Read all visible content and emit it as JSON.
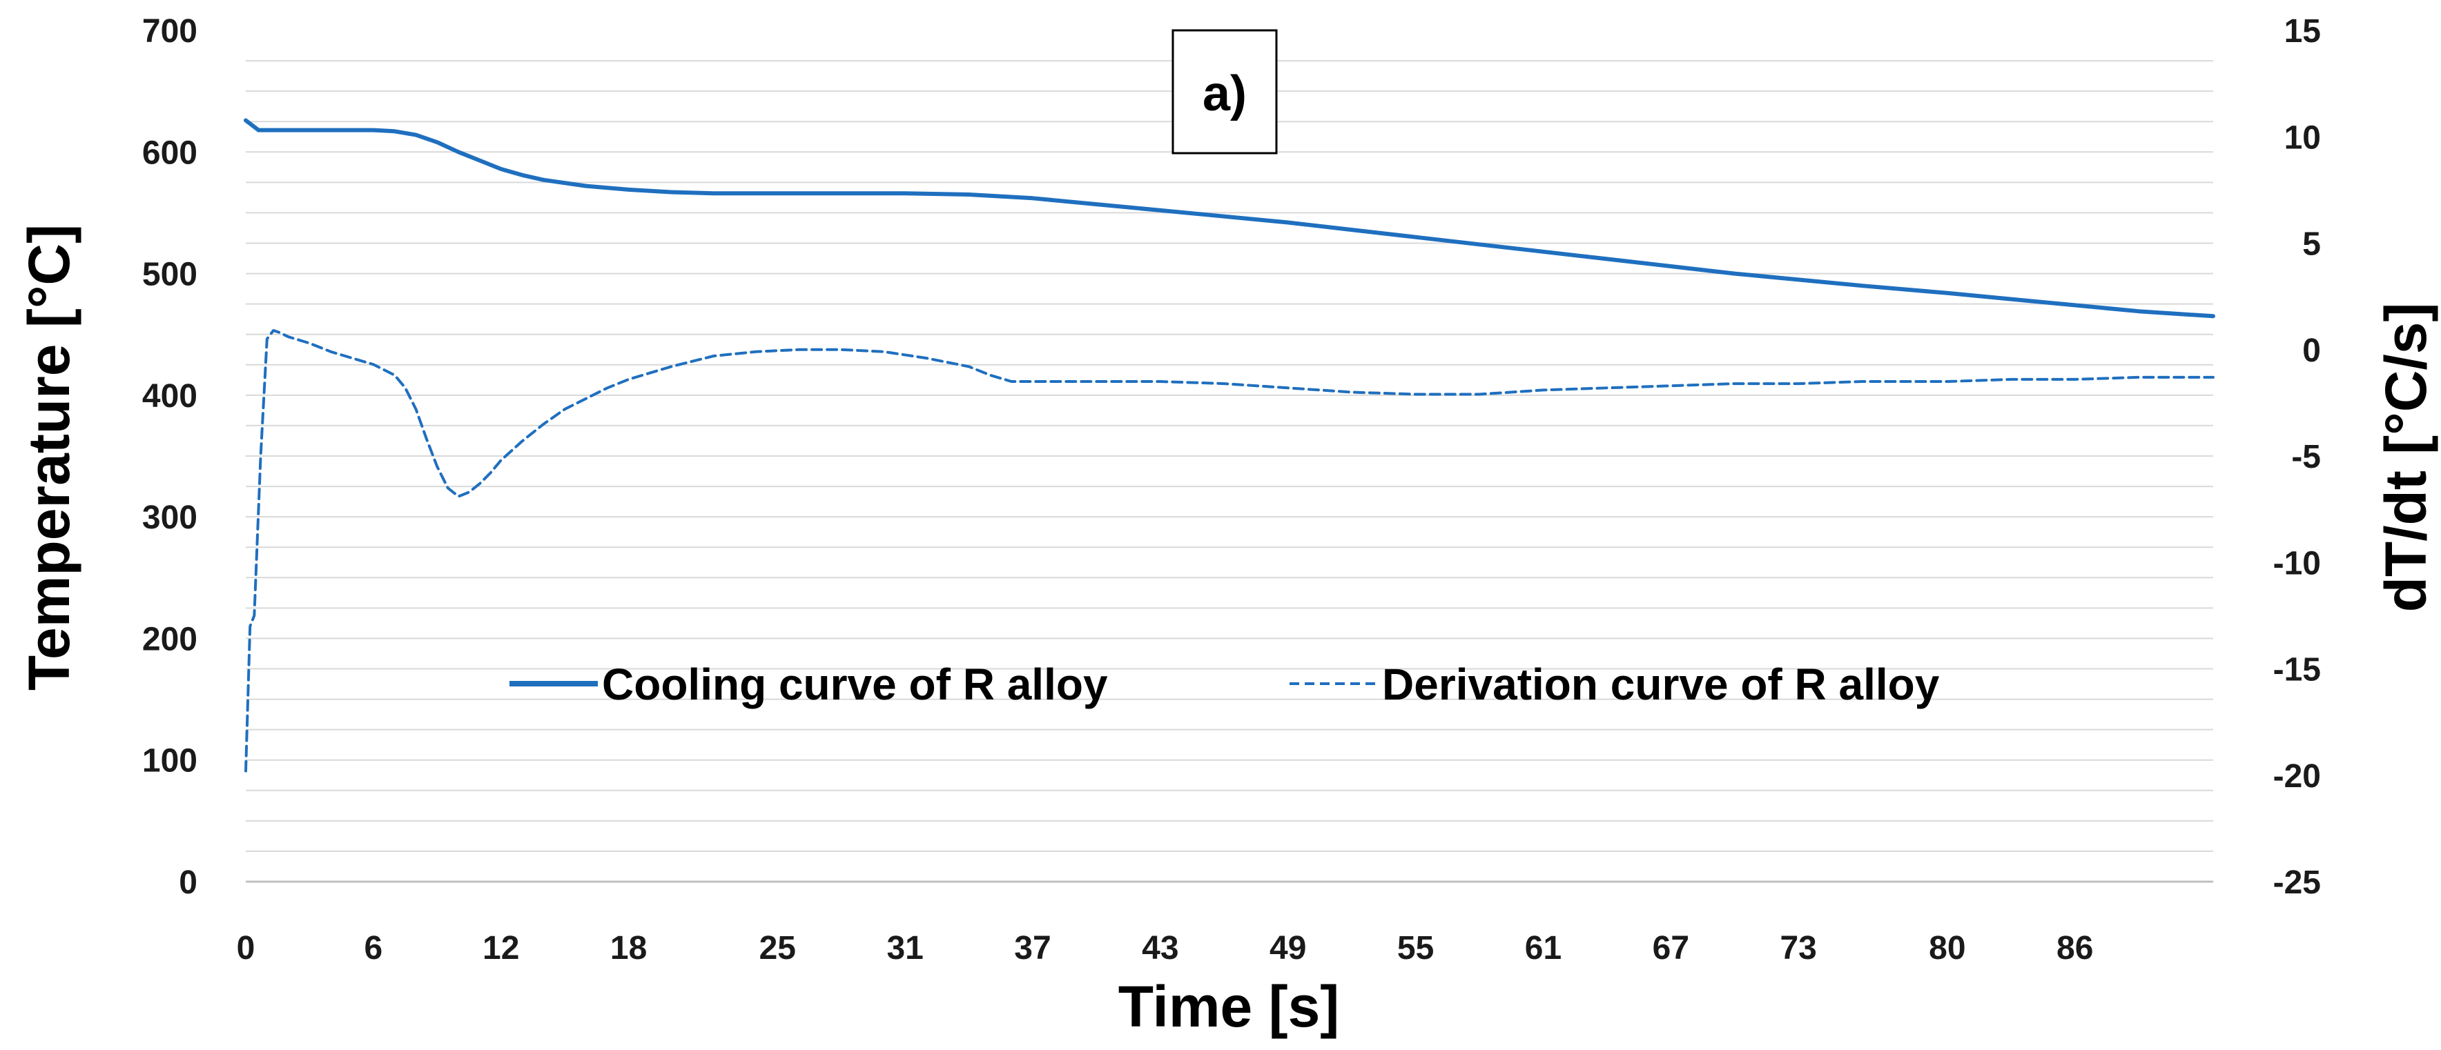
{
  "chart_data": {
    "type": "line",
    "panel_label": "a)",
    "xlabel": "Time [s]",
    "ylabel": "Temperature [°C]",
    "y2label": "dT/dt [°C/s]",
    "xlim": [
      0,
      92.5
    ],
    "ylim": [
      0,
      700
    ],
    "y2lim": [
      -25,
      15
    ],
    "x_ticks": [
      0,
      6,
      12,
      18,
      25,
      31,
      37,
      43,
      49,
      55,
      61,
      67,
      73,
      80,
      86
    ],
    "y_ticks": [
      0,
      100,
      200,
      300,
      400,
      500,
      600,
      700
    ],
    "y2_ticks": [
      -25,
      -20,
      -15,
      -10,
      -5,
      0,
      5,
      10,
      15
    ],
    "grid": true,
    "legend_position": "center",
    "colors": {
      "series": "#1f6fbf",
      "grid": "#d9d9d9",
      "axis": "#bfbfbf"
    },
    "series": [
      {
        "name": "Cooling curve of R alloy",
        "axis": "left",
        "style": "solid",
        "x": [
          0,
          0.6,
          2,
          4,
          6,
          7,
          8,
          9,
          10,
          11,
          12,
          13,
          14,
          16,
          18,
          20,
          22,
          25,
          28,
          31,
          34,
          37,
          40,
          43,
          46,
          49,
          52,
          55,
          58,
          61,
          64,
          67,
          70,
          73,
          76,
          80,
          83,
          86,
          89,
          92.5
        ],
        "y": [
          626,
          618,
          618,
          618,
          618,
          617,
          614,
          608,
          600,
          593,
          586,
          581,
          577,
          572,
          569,
          567,
          566,
          566,
          566,
          566,
          565,
          562,
          557,
          552,
          547,
          542,
          536,
          530,
          524,
          518,
          512,
          506,
          500,
          495,
          490,
          484,
          479,
          474,
          469,
          465
        ]
      },
      {
        "name": "Derivation curve of R alloy",
        "axis": "right",
        "style": "dashed",
        "x": [
          0,
          0.2,
          0.4,
          0.7,
          1.0,
          1.3,
          1.6,
          2,
          3,
          4,
          5,
          6,
          7,
          7.5,
          8,
          8.5,
          9,
          9.5,
          10,
          10.5,
          11,
          11.5,
          12,
          13,
          14,
          15,
          16,
          17,
          18,
          20,
          22,
          24,
          26,
          28,
          30,
          32,
          34,
          35,
          36,
          37,
          40,
          43,
          46,
          49,
          52,
          55,
          58,
          61,
          64,
          67,
          70,
          73,
          76,
          80,
          83,
          86,
          89,
          92.5
        ],
        "y": [
          -19.8,
          -13,
          -12.5,
          -5,
          0.5,
          0.9,
          0.8,
          0.6,
          0.3,
          -0.1,
          -0.4,
          -0.7,
          -1.2,
          -1.8,
          -2.8,
          -4.2,
          -5.5,
          -6.5,
          -6.9,
          -6.7,
          -6.3,
          -5.8,
          -5.2,
          -4.3,
          -3.5,
          -2.8,
          -2.3,
          -1.8,
          -1.4,
          -0.8,
          -0.3,
          -0.1,
          0,
          0,
          -0.1,
          -0.4,
          -0.8,
          -1.2,
          -1.5,
          -1.5,
          -1.5,
          -1.5,
          -1.6,
          -1.8,
          -2.0,
          -2.1,
          -2.1,
          -1.9,
          -1.8,
          -1.7,
          -1.6,
          -1.6,
          -1.5,
          -1.5,
          -1.4,
          -1.4,
          -1.3,
          -1.3
        ]
      }
    ]
  }
}
